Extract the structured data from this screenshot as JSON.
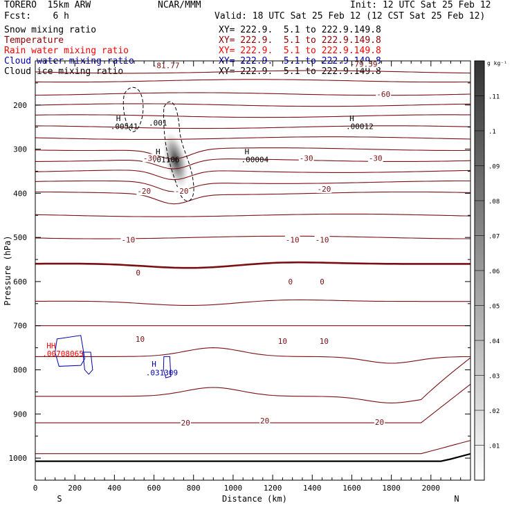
{
  "header": {
    "model": "TORERO  15km ARW",
    "center": "NCAR/MMM",
    "init": "Init: 12 UTC Sat 25 Feb 12",
    "fcst": "Fcst:    6 h",
    "valid": "Valid: 18 UTC Sat 25 Feb 12 (12 CST Sat 25 Feb 12)"
  },
  "fields": [
    {
      "label": "Snow mixing ratio",
      "xy": "XY= 222.9.  5.1 to 222.9.149.8",
      "color": "#000000"
    },
    {
      "label": "Temperature",
      "xy": "XY= 222.9.  5.1 to 222.9.149.8",
      "color": "#8b0000"
    },
    {
      "label": "Rain water mixing ratio",
      "xy": "XY= 222.9.  5.1 to 222.9.149.8",
      "color": "#ff0000"
    },
    {
      "label": "Cloud water mixing ratio",
      "xy": "XY= 222.9.  5.1 to 222.9.149.8",
      "color": "#0000aa"
    },
    {
      "label": "Cloud ice mixing ratio",
      "xy": "XY= 222.9.  5.1 to 222.9.149.8",
      "color": "#000000"
    }
  ],
  "chart_data": {
    "type": "cross-section contour",
    "xlabel": "Distance (km)",
    "ylabel": "Pressure (hPa)",
    "xlim": [
      0,
      2200
    ],
    "ylim": [
      100,
      1050
    ],
    "x_ticks": [
      "0",
      "200",
      "400",
      "600",
      "800",
      "1000",
      "1200",
      "1400",
      "1600",
      "1800",
      "2000"
    ],
    "y_ticks": [
      "200",
      "300",
      "400",
      "500",
      "600",
      "700",
      "800",
      "900",
      "1000"
    ],
    "endpoints": {
      "left": "S",
      "right": "N"
    },
    "colorbar": {
      "unit": "g kg⁻¹",
      "ticks": [
        ".01",
        ".02",
        ".03",
        ".04",
        ".05",
        ".06",
        ".07",
        ".08",
        ".09",
        ".1",
        ".11"
      ],
      "range": [
        0,
        0.12
      ]
    },
    "temperature_labels": [
      {
        "text": "-81.77",
        "x": 660,
        "p": 110
      },
      {
        "text": "-79.59",
        "x": 1660,
        "p": 107
      },
      {
        "text": "-60",
        "x": 1760,
        "p": 175
      },
      {
        "text": "-30",
        "x": 580,
        "p": 320
      },
      {
        "text": "-30",
        "x": 1370,
        "p": 320
      },
      {
        "text": "-30",
        "x": 1720,
        "p": 320
      },
      {
        "text": "-20",
        "x": 550,
        "p": 395
      },
      {
        "text": "-20",
        "x": 740,
        "p": 395
      },
      {
        "text": "-20",
        "x": 1460,
        "p": 390
      },
      {
        "text": "-10",
        "x": 470,
        "p": 505
      },
      {
        "text": "-10",
        "x": 1300,
        "p": 505
      },
      {
        "text": "-10",
        "x": 1450,
        "p": 505
      },
      {
        "text": "0",
        "x": 520,
        "p": 580
      },
      {
        "text": "0",
        "x": 1290,
        "p": 600
      },
      {
        "text": "0",
        "x": 1450,
        "p": 600
      },
      {
        "text": "10",
        "x": 530,
        "p": 730
      },
      {
        "text": "10",
        "x": 1250,
        "p": 735
      },
      {
        "text": "10",
        "x": 1460,
        "p": 735
      },
      {
        "text": "20",
        "x": 760,
        "p": 920
      },
      {
        "text": "20",
        "x": 1160,
        "p": 915
      },
      {
        "text": "20",
        "x": 1740,
        "p": 918
      }
    ],
    "temperature_isotherm_pressures": [
      125,
      145,
      175,
      200,
      225,
      250,
      275,
      300,
      325,
      350,
      375,
      400,
      450,
      500,
      560,
      645,
      700,
      770,
      860,
      920,
      990
    ],
    "maxima_labels": [
      {
        "text": "H",
        "x": 420,
        "p": 230
      },
      {
        "text": ".00541",
        "x": 450,
        "p": 248
      },
      {
        "text": ".001",
        "x": 620,
        "p": 240
      },
      {
        "text": "H",
        "x": 620,
        "p": 305
      },
      {
        "text": ".01106",
        "x": 660,
        "p": 323
      },
      {
        "text": "H",
        "x": 1070,
        "p": 305
      },
      {
        "text": ".00004",
        "x": 1110,
        "p": 323
      },
      {
        "text": "H",
        "x": 1600,
        "p": 230
      },
      {
        "text": ".00012",
        "x": 1640,
        "p": 248
      },
      {
        "text": "H",
        "x": 600,
        "p": 787,
        "color": "#0000aa"
      },
      {
        "text": ".031309",
        "x": 640,
        "p": 806,
        "color": "#0000aa"
      },
      {
        "text": "HH",
        "x": 80,
        "p": 745,
        "color": "#ff0000"
      },
      {
        "text": ".00708065",
        "x": 140,
        "p": 763,
        "color": "#ff0000"
      }
    ]
  }
}
